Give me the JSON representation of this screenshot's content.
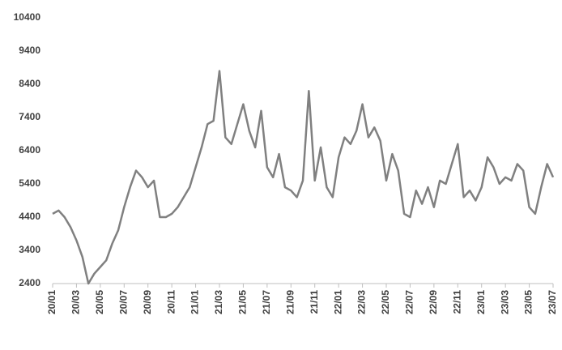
{
  "chart_data": {
    "type": "line",
    "categories": [
      "20/01",
      null,
      null,
      null,
      "20/03",
      null,
      null,
      null,
      "20/05",
      null,
      null,
      null,
      "20/07",
      null,
      null,
      null,
      "20/09",
      null,
      null,
      null,
      "20/11",
      null,
      null,
      null,
      "21/01",
      null,
      null,
      null,
      "21/03",
      null,
      null,
      null,
      "21/05",
      null,
      null,
      null,
      "21/07",
      null,
      null,
      null,
      "21/09",
      null,
      null,
      null,
      "21/11",
      null,
      null,
      null,
      "22/01",
      null,
      null,
      null,
      "22/03",
      null,
      null,
      null,
      "22/05",
      null,
      null,
      null,
      "22/07",
      null,
      null,
      null,
      "22/09",
      null,
      null,
      null,
      "22/11",
      null,
      null,
      null,
      "23/01",
      null,
      null,
      null,
      "23/03",
      null,
      null,
      null,
      "23/05",
      null,
      null,
      null,
      "23/07"
    ],
    "series": [
      {
        "color": "#808080",
        "values": [
          4500,
          4600,
          4400,
          4100,
          3700,
          3200,
          2400,
          2700,
          2900,
          3100,
          3600,
          4000,
          4700,
          5300,
          5800,
          5600,
          5300,
          5500,
          4400,
          4400,
          4500,
          4700,
          5000,
          5300,
          5900,
          6500,
          7200,
          7300,
          8800,
          6800,
          6600,
          7200,
          7800,
          7000,
          6500,
          7600,
          5900,
          5600,
          6300,
          5300,
          5200,
          5000,
          5500,
          8200,
          5500,
          6500,
          5300,
          5000,
          6200,
          6800,
          6600,
          7000,
          7800,
          6800,
          7100,
          6700,
          5500,
          6300,
          5800,
          4500,
          4400,
          5200,
          4800,
          5300,
          4700,
          5500,
          5400,
          6000,
          6600,
          5000,
          5200,
          4900,
          5300,
          6200,
          5900,
          5400,
          5600,
          5500,
          6000,
          5800,
          4700,
          4500,
          5300,
          6000,
          5600
        ]
      }
    ],
    "ylim": [
      2400,
      10400
    ],
    "yticks": [
      2400,
      3400,
      4400,
      5400,
      6400,
      7400,
      8400,
      9400,
      10400
    ],
    "grid": false
  }
}
